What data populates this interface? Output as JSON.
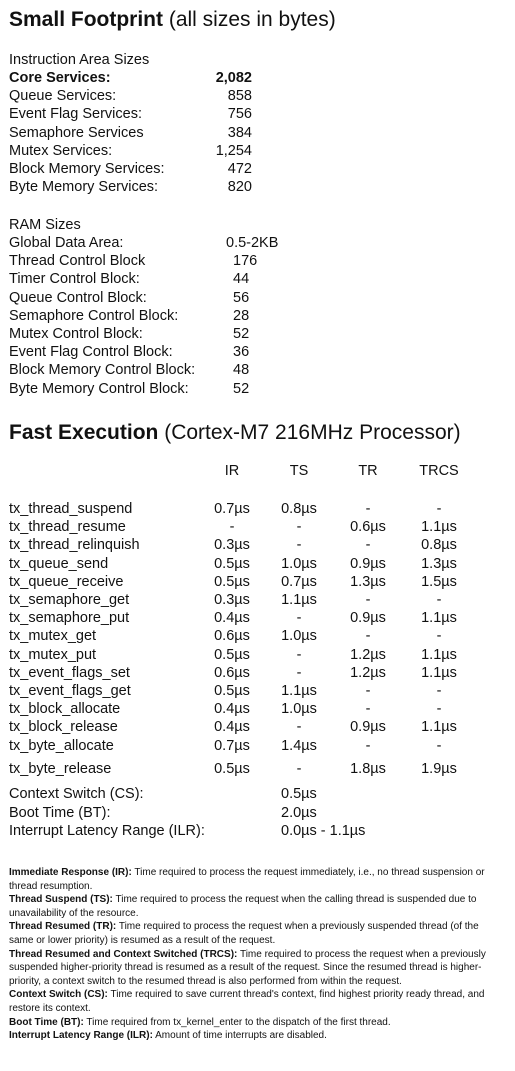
{
  "footprint": {
    "title_bold": "Small Footprint",
    "title_rest": " (all sizes in bytes)",
    "instruction_header": "Instruction Area Sizes",
    "instruction_rows": [
      {
        "label": "Core Services:",
        "value": "2,082",
        "bold": true
      },
      {
        "label": "Queue Services:",
        "value": "858"
      },
      {
        "label": "Event Flag Services:",
        "value": "756"
      },
      {
        "label": "Semaphore Services",
        "value": "384"
      },
      {
        "label": "Mutex Services:",
        "value": "1,254"
      },
      {
        "label": "Block Memory Services:",
        "value": "472"
      },
      {
        "label": "Byte Memory Services:",
        "value": "820"
      }
    ],
    "ram_header": "RAM Sizes",
    "ram_rows": [
      {
        "label": "Global Data Area:",
        "value": "0.5-2KB"
      },
      {
        "label": "Thread Control Block",
        "value": "176"
      },
      {
        "label": "Timer Control Block:",
        "value": "44"
      },
      {
        "label": "Queue Control Block:",
        "value": "56"
      },
      {
        "label": "Semaphore Control Block:",
        "value": "28"
      },
      {
        "label": "Mutex Control Block:",
        "value": "52"
      },
      {
        "label": "Event Flag Control Block:",
        "value": "36"
      },
      {
        "label": "Block Memory Control Block:",
        "value": "48"
      },
      {
        "label": "Byte Memory Control Block:",
        "value": "52"
      }
    ]
  },
  "execution": {
    "title_bold": "Fast Execution",
    "title_rest": " (Cortex-M7 216MHz Processor)",
    "columns": [
      "IR",
      "TS",
      "TR",
      "TRCS"
    ],
    "rows": [
      {
        "name": "tx_thread_suspend",
        "cells": [
          "0.7µs",
          "0.8µs",
          "-",
          "-"
        ]
      },
      {
        "name": "tx_thread_resume",
        "cells": [
          "-",
          "-",
          "0.6µs",
          "1.1µs"
        ]
      },
      {
        "name": "tx_thread_relinquish",
        "cells": [
          "0.3µs",
          "-",
          "-",
          "0.8µs"
        ]
      },
      {
        "name": "tx_queue_send",
        "cells": [
          "0.5µs",
          "1.0µs",
          "0.9µs",
          "1.3µs"
        ]
      },
      {
        "name": "tx_queue_receive",
        "cells": [
          "0.5µs",
          "0.7µs",
          "1.3µs",
          "1.5µs"
        ]
      },
      {
        "name": "tx_semaphore_get",
        "cells": [
          "0.3µs",
          "1.1µs",
          "-",
          "-"
        ]
      },
      {
        "name": "tx_semaphore_put",
        "cells": [
          "0.4µs",
          "-",
          "0.9µs",
          "1.1µs"
        ]
      },
      {
        "name": "tx_mutex_get",
        "cells": [
          "0.6µs",
          "1.0µs",
          "-",
          "-"
        ]
      },
      {
        "name": "tx_mutex_put",
        "cells": [
          "0.5µs",
          "-",
          "1.2µs",
          "1.1µs"
        ]
      },
      {
        "name": "tx_event_flags_set",
        "cells": [
          "0.6µs",
          "-",
          "1.2µs",
          "1.1µs"
        ]
      },
      {
        "name": "tx_event_flags_get",
        "cells": [
          "0.5µs",
          "1.1µs",
          "-",
          "-"
        ]
      },
      {
        "name": "tx_block_allocate",
        "cells": [
          "0.4µs",
          "1.0µs",
          "-",
          "-"
        ]
      },
      {
        "name": "tx_block_release",
        "cells": [
          "0.4µs",
          "-",
          "0.9µs",
          "1.1µs"
        ]
      },
      {
        "name": "tx_byte_allocate",
        "cells": [
          "0.7µs",
          "1.4µs",
          "-",
          "-"
        ]
      },
      {
        "name": "tx_byte_release",
        "cells": [
          "0.5µs",
          "-",
          "1.8µs",
          "1.9µs"
        ]
      }
    ],
    "summary": [
      {
        "label": "Context Switch (CS):",
        "value": "0.5µs"
      },
      {
        "label": "Boot Time (BT):",
        "value": "2.0µs"
      },
      {
        "label": "Interrupt Latency Range (ILR):",
        "value": "0.0µs - 1.1µs"
      }
    ]
  },
  "definitions": [
    {
      "term": "Immediate Response (IR):",
      "text": " Time required to process the request immediately, i.e., no thread suspension or thread resumption."
    },
    {
      "term": "Thread Suspend (TS):",
      "text": " Time required to process the request when the calling thread is suspended due to unavailability of the resource."
    },
    {
      "term": "Thread Resumed (TR):",
      "text": " Time required to process the request when a previously suspended thread (of the same or lower priority) is resumed as a result of the request."
    },
    {
      "term": "Thread Resumed and Context Switched (TRCS):",
      "text": " Time required to process the request when a previously suspended higher-priority thread is resumed as a result of the request. Since the resumed thread is higher-priority, a context switch to the resumed thread is also performed from within the request."
    },
    {
      "term": "Context Switch (CS):",
      "text": " Time required to save current thread's context, find highest priority ready thread, and restore its context."
    },
    {
      "term": "Boot Time (BT):",
      "text": " Time required from tx_kernel_enter to the dispatch of the first thread."
    },
    {
      "term": "Interrupt Latency Range (ILR):",
      "text": " Amount of time interrupts are disabled."
    }
  ]
}
